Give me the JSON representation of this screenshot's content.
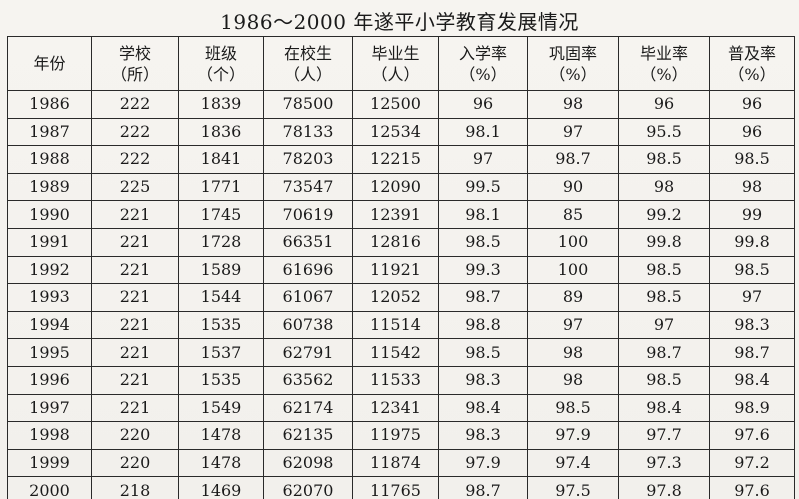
{
  "title": "1986～2000 年遂平小学教育发展情况",
  "table": {
    "headers": [
      {
        "line1": "年份",
        "line2": ""
      },
      {
        "line1": "学校",
        "line2": "（所）"
      },
      {
        "line1": "班级",
        "line2": "（个）"
      },
      {
        "line1": "在校生",
        "line2": "（人）"
      },
      {
        "line1": "毕业生",
        "line2": "（人）"
      },
      {
        "line1": "入学率",
        "line2": "（%）"
      },
      {
        "line1": "巩固率",
        "line2": "（%）"
      },
      {
        "line1": "毕业率",
        "line2": "（%）"
      },
      {
        "line1": "普及率",
        "line2": "（%）"
      }
    ],
    "rows": [
      [
        "1986",
        "222",
        "1839",
        "78500",
        "12500",
        "96",
        "98",
        "96",
        "96"
      ],
      [
        "1987",
        "222",
        "1836",
        "78133",
        "12534",
        "98.1",
        "97",
        "95.5",
        "96"
      ],
      [
        "1988",
        "222",
        "1841",
        "78203",
        "12215",
        "97",
        "98.7",
        "98.5",
        "98.5"
      ],
      [
        "1989",
        "225",
        "1771",
        "73547",
        "12090",
        "99.5",
        "90",
        "98",
        "98"
      ],
      [
        "1990",
        "221",
        "1745",
        "70619",
        "12391",
        "98.1",
        "85",
        "99.2",
        "99"
      ],
      [
        "1991",
        "221",
        "1728",
        "66351",
        "12816",
        "98.5",
        "100",
        "99.8",
        "99.8"
      ],
      [
        "1992",
        "221",
        "1589",
        "61696",
        "11921",
        "99.3",
        "100",
        "98.5",
        "98.5"
      ],
      [
        "1993",
        "221",
        "1544",
        "61067",
        "12052",
        "98.7",
        "89",
        "98.5",
        "97"
      ],
      [
        "1994",
        "221",
        "1535",
        "60738",
        "11514",
        "98.8",
        "97",
        "97",
        "98.3"
      ],
      [
        "1995",
        "221",
        "1537",
        "62791",
        "11542",
        "98.5",
        "98",
        "98.7",
        "98.7"
      ],
      [
        "1996",
        "221",
        "1535",
        "63562",
        "11533",
        "98.3",
        "98",
        "98.5",
        "98.4"
      ],
      [
        "1997",
        "221",
        "1549",
        "62174",
        "12341",
        "98.4",
        "98.5",
        "98.4",
        "98.9"
      ],
      [
        "1998",
        "220",
        "1478",
        "62135",
        "11975",
        "98.3",
        "97.9",
        "97.7",
        "97.6"
      ],
      [
        "1999",
        "220",
        "1478",
        "62098",
        "11874",
        "97.9",
        "97.4",
        "97.3",
        "97.2"
      ],
      [
        "2000",
        "218",
        "1469",
        "62070",
        "11765",
        "98.7",
        "97.5",
        "97.8",
        "97.6"
      ]
    ]
  },
  "colors": {
    "paper": "#f4f2ee",
    "ink": "#1a1a1a",
    "rule": "#2a2a2a"
  }
}
